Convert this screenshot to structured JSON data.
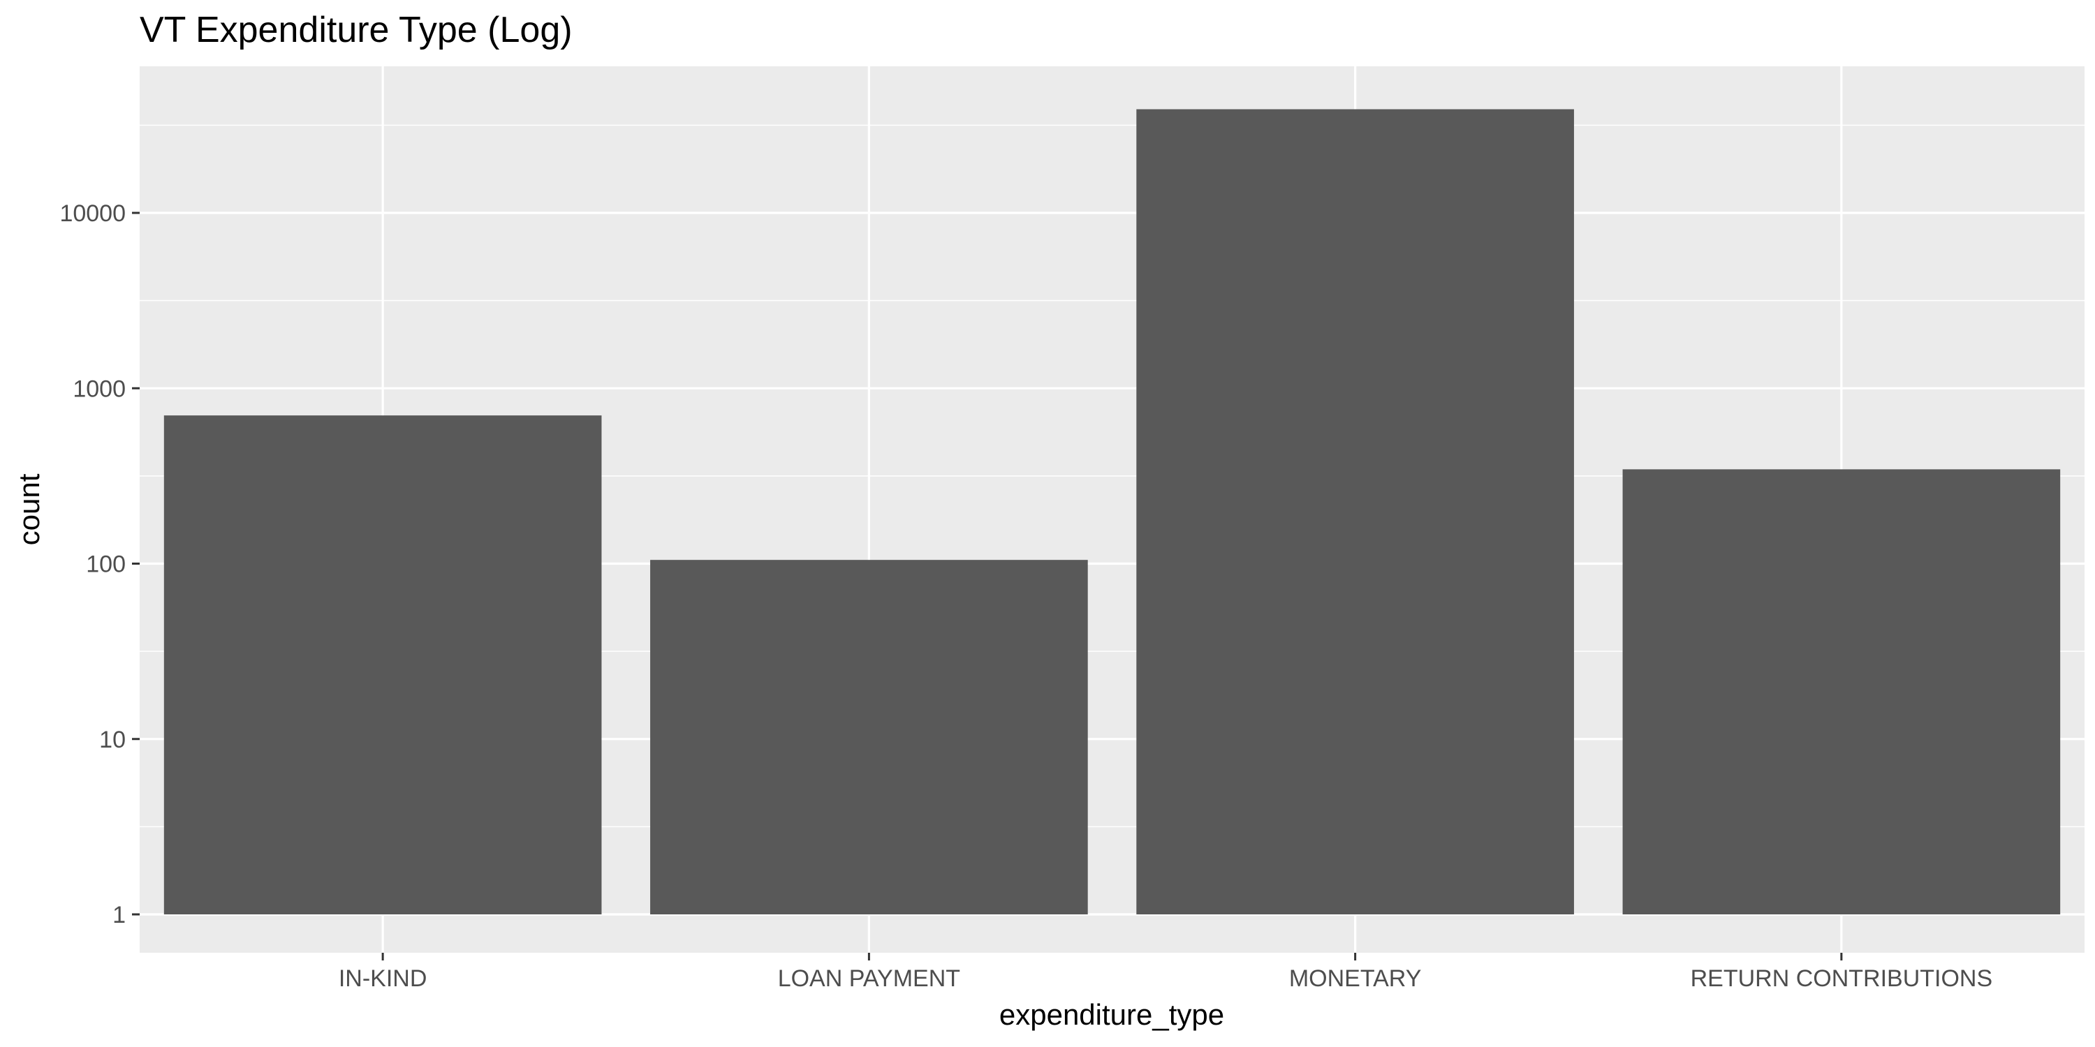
{
  "chart_data": {
    "type": "bar",
    "title": "VT Expenditure Type (Log)",
    "xlabel": "expenditure_type",
    "ylabel": "count",
    "yscale": "log10",
    "categories": [
      "IN-KIND",
      "LOAN PAYMENT",
      "MONETARY",
      "RETURN CONTRIBUTIONS"
    ],
    "values": [
      700,
      105,
      39000,
      345
    ],
    "ylim": [
      1,
      39000
    ],
    "yticks": [
      1,
      10,
      100,
      1000,
      10000
    ],
    "ytick_labels": [
      "1",
      "10",
      "100",
      "1000",
      "10000"
    ],
    "grid": true,
    "legend": "none",
    "colors": {
      "bar": "#595959",
      "panel": "#ebebeb",
      "grid": "#ffffff",
      "tick_text": "#4d4d4d",
      "tick_mark": "#333333"
    }
  }
}
